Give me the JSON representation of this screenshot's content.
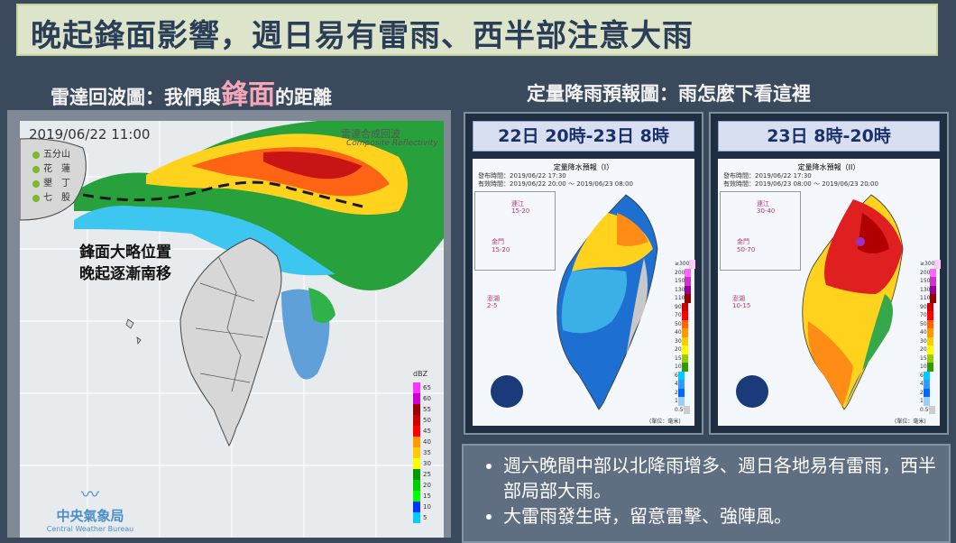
{
  "title": "晚起鋒面影響，週日易有雷雨、西半部注意大雨",
  "left_subtitle": {
    "pre": "雷達回波圖：我們與",
    "big1": "鋒",
    "big2": "面",
    "post": "的距離"
  },
  "right_subtitle": "定量降雨預報圖：雨怎麼下看這裡",
  "radar": {
    "datetime": "2019/06/22 11:00",
    "source_cn": "雷達合成回波",
    "source_en": "Composite Reflectivity",
    "stations": [
      "五分山",
      "花　蓮",
      "墾　丁",
      "七　股"
    ],
    "front_note_1": "鋒面大略位置",
    "front_note_2": "晚起逐漸南移",
    "legend_unit": "dBZ",
    "legend_values": [
      "65",
      "60",
      "55",
      "50",
      "45",
      "40",
      "35",
      "30",
      "25",
      "20",
      "15",
      "10",
      "5"
    ],
    "legend_colors": [
      "#ff33ff",
      "#cc00cc",
      "#990000",
      "#cc0000",
      "#ff0000",
      "#ff9900",
      "#ffcc00",
      "#ffff00",
      "#009900",
      "#00cc00",
      "#00ff00",
      "#0033ff",
      "#00ccff"
    ],
    "agency_cn": "中央氣象局",
    "agency_en": "Central Weather Bureau"
  },
  "panels": [
    {
      "header": "22日 20時-23日 8時",
      "map_title": "定量降水預報（I）",
      "issued": "發布時間：2019/06/22 17:30",
      "valid": "有效時間：2019/06/22 20:00 ～ 2019/06/23 08:00",
      "matsu_name": "連江",
      "matsu_val": "15-20",
      "kinmen_name": "金門",
      "kinmen_val": "15-20",
      "penghu_name": "澎湖",
      "penghu_val": "2-5"
    },
    {
      "header": "23日 8時-20時",
      "map_title": "定量降水預報（II）",
      "issued": "發布時間：2019/06/22 17:30",
      "valid": "有效時間：2019/06/23 08:00 ～ 2019/06/23 20:00",
      "matsu_name": "連江",
      "matsu_val": "30-40",
      "kinmen_name": "金門",
      "kinmen_val": "50-70",
      "penghu_name": "澎湖",
      "penghu_val": "10-15"
    }
  ],
  "rain_scale": {
    "values": [
      "≥300",
      "200",
      "150",
      "130",
      "110",
      "90",
      "70",
      "50",
      "40",
      "30",
      "20",
      "15",
      "10",
      "6",
      "4",
      "2",
      "1",
      "0.5"
    ],
    "colors": [
      "#ffccff",
      "#ff66ff",
      "#cc33cc",
      "#990099",
      "#990000",
      "#cc0000",
      "#ff0000",
      "#ff6600",
      "#ff9900",
      "#ffcc00",
      "#ffff00",
      "#99cc00",
      "#339900",
      "#00ccff",
      "#3399ff",
      "#0066ff",
      "#99ccff",
      "#cccccc"
    ],
    "unit": "(單位：毫米)"
  },
  "bullets": [
    "週六晚間中部以北降雨增多、週日各地易有雷雨，西半部局部大雨。",
    "大雷雨發生時，留意雷擊、強陣風。"
  ],
  "colors": {
    "title_bg": "#dce5c9",
    "title_text": "#2c3e57",
    "page_bg": "#3a4a5c"
  }
}
